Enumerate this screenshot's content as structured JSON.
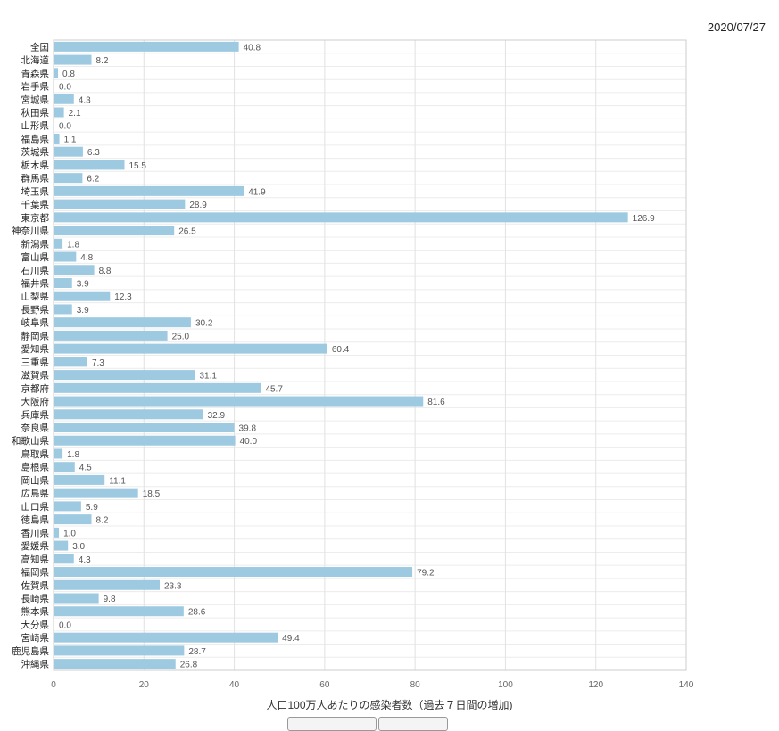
{
  "date": "2020/07/27",
  "chart_data": {
    "type": "bar",
    "orientation": "horizontal",
    "xlabel": "人口100万人あたりの感染者数（過去７日間の増加)",
    "xlim": [
      0,
      140
    ],
    "xticks": [
      0,
      20,
      40,
      60,
      80,
      100,
      120,
      140
    ],
    "grid": true,
    "bar_color": "#9ecae1",
    "categories": [
      "全国",
      "北海道",
      "青森県",
      "岩手県",
      "宮城県",
      "秋田県",
      "山形県",
      "福島県",
      "茨城県",
      "栃木県",
      "群馬県",
      "埼玉県",
      "千葉県",
      "東京都",
      "神奈川県",
      "新潟県",
      "富山県",
      "石川県",
      "福井県",
      "山梨県",
      "長野県",
      "岐阜県",
      "静岡県",
      "愛知県",
      "三重県",
      "滋賀県",
      "京都府",
      "大阪府",
      "兵庫県",
      "奈良県",
      "和歌山県",
      "鳥取県",
      "島根県",
      "岡山県",
      "広島県",
      "山口県",
      "徳島県",
      "香川県",
      "愛媛県",
      "高知県",
      "福岡県",
      "佐賀県",
      "長崎県",
      "熊本県",
      "大分県",
      "宮崎県",
      "鹿児島県",
      "沖縄県"
    ],
    "values": [
      40.8,
      8.2,
      0.8,
      0.0,
      4.3,
      2.1,
      0.0,
      1.1,
      6.3,
      15.5,
      6.2,
      41.9,
      28.9,
      126.9,
      26.5,
      1.8,
      4.8,
      8.8,
      3.9,
      12.3,
      3.9,
      30.2,
      25.0,
      60.4,
      7.3,
      31.1,
      45.7,
      81.6,
      32.9,
      39.8,
      40.0,
      1.8,
      4.5,
      11.1,
      18.5,
      5.9,
      8.2,
      1.0,
      3.0,
      4.3,
      79.2,
      23.3,
      9.8,
      28.6,
      0.0,
      49.4,
      28.7,
      26.8
    ]
  }
}
